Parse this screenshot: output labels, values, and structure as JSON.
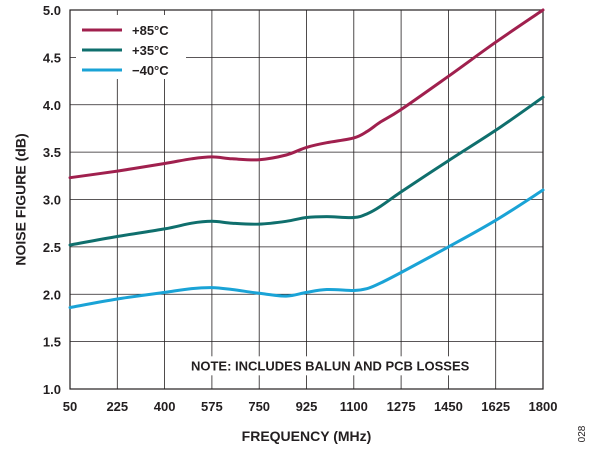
{
  "chart_data": {
    "type": "line",
    "xlabel": "FREQUENCY (MHz)",
    "ylabel": "NOISE FIGURE (dB)",
    "xlim": [
      50,
      1800
    ],
    "ylim": [
      1.0,
      5.0
    ],
    "x_ticks": [
      50,
      225,
      400,
      575,
      750,
      925,
      1100,
      1275,
      1450,
      1625,
      1800
    ],
    "y_ticks": [
      "1.0",
      "1.5",
      "2.0",
      "2.5",
      "3.0",
      "3.5",
      "4.0",
      "4.5",
      "5.0"
    ],
    "grid": true,
    "legend_position": "top-left",
    "annotation": "NOTE: INCLUDES BALUN AND PCB LOSSES",
    "figure_number": "028",
    "series": [
      {
        "name": "+85°C",
        "color": "#a0204e",
        "x": [
          50,
          225,
          400,
          500,
          575,
          650,
          750,
          850,
          925,
          1000,
          1100,
          1150,
          1200,
          1275,
          1450,
          1625,
          1800
        ],
        "y": [
          3.23,
          3.3,
          3.38,
          3.43,
          3.45,
          3.43,
          3.42,
          3.47,
          3.55,
          3.6,
          3.65,
          3.72,
          3.82,
          3.95,
          4.3,
          4.66,
          5.0
        ]
      },
      {
        "name": "+35°C",
        "color": "#0f6f6d",
        "x": [
          50,
          225,
          400,
          500,
          575,
          650,
          750,
          850,
          925,
          1000,
          1100,
          1150,
          1200,
          1275,
          1450,
          1625,
          1800
        ],
        "y": [
          2.52,
          2.61,
          2.69,
          2.75,
          2.77,
          2.75,
          2.74,
          2.77,
          2.81,
          2.82,
          2.81,
          2.85,
          2.93,
          3.08,
          3.41,
          3.73,
          4.08
        ]
      },
      {
        "name": "−40°C",
        "color": "#1aa3d6",
        "x": [
          50,
          225,
          400,
          500,
          575,
          650,
          750,
          850,
          925,
          1000,
          1100,
          1150,
          1200,
          1275,
          1450,
          1625,
          1800
        ],
        "y": [
          1.86,
          1.95,
          2.02,
          2.06,
          2.07,
          2.05,
          2.01,
          1.98,
          2.02,
          2.05,
          2.04,
          2.06,
          2.12,
          2.23,
          2.5,
          2.78,
          3.1
        ]
      }
    ]
  }
}
